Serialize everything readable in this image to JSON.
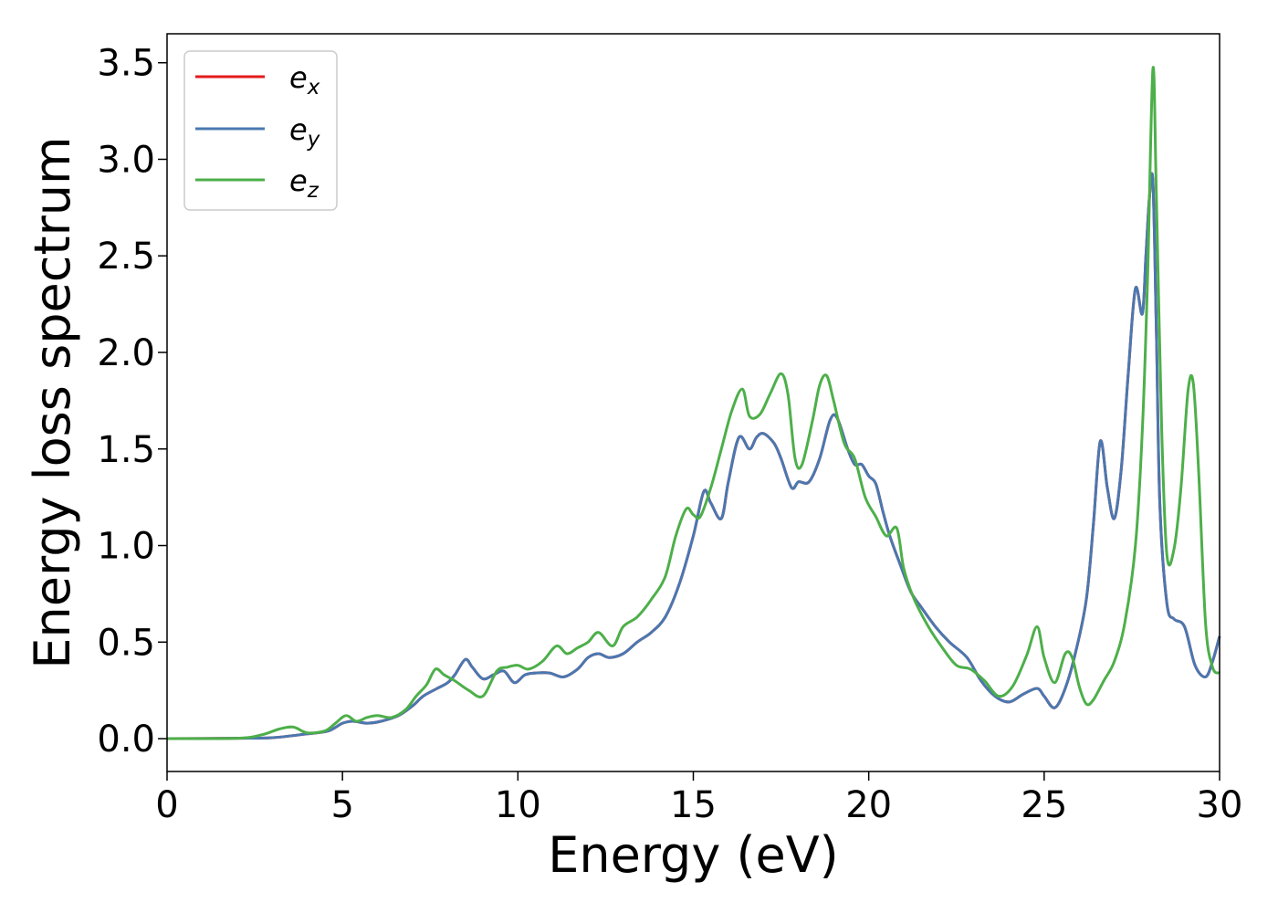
{
  "chart_data": {
    "type": "line",
    "xlabel": "Energy (eV)",
    "ylabel": "Energy loss spectrum",
    "xlim": [
      0,
      30
    ],
    "ylim": [
      -0.17,
      3.65
    ],
    "xticks": [
      0,
      5,
      10,
      15,
      20,
      25,
      30
    ],
    "yticks": [
      0.0,
      0.5,
      1.0,
      1.5,
      2.0,
      2.5,
      3.0,
      3.5
    ],
    "xtick_labels": [
      "0",
      "5",
      "10",
      "15",
      "20",
      "25",
      "30"
    ],
    "ytick_labels": [
      "0.0",
      "0.5",
      "1.0",
      "1.5",
      "2.0",
      "2.5",
      "3.0",
      "3.5"
    ],
    "grid": false,
    "legend_position": "top-left",
    "series": [
      {
        "name": "e",
        "subscript": "x",
        "color": "#e41a1c",
        "x": [
          0,
          2,
          3,
          4,
          4.6,
          5,
          5.3,
          5.7,
          6.1,
          6.6,
          7.0,
          7.3,
          7.7,
          8.0,
          8.2,
          8.5,
          8.7,
          9.0,
          9.3,
          9.6,
          9.9,
          10.2,
          10.5,
          10.9,
          11.3,
          11.7,
          12.0,
          12.3,
          12.6,
          13.0,
          13.4,
          13.8,
          14.2,
          14.6,
          15.0,
          15.3,
          15.5,
          15.8,
          16.0,
          16.3,
          16.6,
          16.8,
          17.0,
          17.3,
          17.5,
          17.8,
          18.0,
          18.3,
          18.6,
          18.9,
          19.1,
          19.4,
          19.6,
          19.8,
          20.0,
          20.2,
          20.4,
          20.6,
          20.9,
          21.2,
          21.5,
          21.9,
          22.3,
          22.8,
          23.2,
          23.6,
          24.0,
          24.4,
          24.8,
          25.0,
          25.3,
          25.6,
          25.9,
          26.2,
          26.4,
          26.6,
          26.8,
          27.0,
          27.2,
          27.4,
          27.6,
          27.8,
          27.9,
          28.0,
          28.1,
          28.2,
          28.3,
          28.5,
          28.7,
          29.0,
          29.3,
          29.6,
          29.8,
          30.0
        ],
        "values": [
          0,
          0.002,
          0.005,
          0.025,
          0.04,
          0.08,
          0.09,
          0.08,
          0.09,
          0.12,
          0.17,
          0.22,
          0.26,
          0.29,
          0.33,
          0.41,
          0.37,
          0.31,
          0.33,
          0.35,
          0.29,
          0.33,
          0.34,
          0.34,
          0.32,
          0.36,
          0.42,
          0.44,
          0.42,
          0.44,
          0.5,
          0.55,
          0.63,
          0.8,
          1.05,
          1.28,
          1.22,
          1.14,
          1.33,
          1.56,
          1.5,
          1.56,
          1.58,
          1.53,
          1.45,
          1.3,
          1.33,
          1.33,
          1.45,
          1.65,
          1.66,
          1.5,
          1.42,
          1.42,
          1.36,
          1.32,
          1.18,
          1.05,
          0.9,
          0.76,
          0.68,
          0.58,
          0.5,
          0.42,
          0.3,
          0.22,
          0.19,
          0.23,
          0.26,
          0.22,
          0.16,
          0.26,
          0.45,
          0.72,
          1.1,
          1.54,
          1.3,
          1.14,
          1.4,
          1.9,
          2.33,
          2.2,
          2.5,
          2.8,
          2.88,
          2.1,
          1.2,
          0.7,
          0.62,
          0.58,
          0.38,
          0.32,
          0.4,
          0.53
        ]
      },
      {
        "name": "e",
        "subscript": "y",
        "color": "#4a78b0",
        "x": [
          0,
          2,
          3,
          4,
          4.6,
          5,
          5.3,
          5.7,
          6.1,
          6.6,
          7.0,
          7.3,
          7.7,
          8.0,
          8.2,
          8.5,
          8.7,
          9.0,
          9.3,
          9.6,
          9.9,
          10.2,
          10.5,
          10.9,
          11.3,
          11.7,
          12.0,
          12.3,
          12.6,
          13.0,
          13.4,
          13.8,
          14.2,
          14.6,
          15.0,
          15.3,
          15.5,
          15.8,
          16.0,
          16.3,
          16.6,
          16.8,
          17.0,
          17.3,
          17.5,
          17.8,
          18.0,
          18.3,
          18.6,
          18.9,
          19.1,
          19.4,
          19.6,
          19.8,
          20.0,
          20.2,
          20.4,
          20.6,
          20.9,
          21.2,
          21.5,
          21.9,
          22.3,
          22.8,
          23.2,
          23.6,
          24.0,
          24.4,
          24.8,
          25.0,
          25.3,
          25.6,
          25.9,
          26.2,
          26.4,
          26.6,
          26.8,
          27.0,
          27.2,
          27.4,
          27.6,
          27.8,
          27.9,
          28.0,
          28.1,
          28.2,
          28.3,
          28.5,
          28.7,
          29.0,
          29.3,
          29.6,
          29.8,
          30.0
        ],
        "values": [
          0,
          0.002,
          0.005,
          0.025,
          0.04,
          0.08,
          0.09,
          0.08,
          0.09,
          0.12,
          0.17,
          0.22,
          0.26,
          0.29,
          0.33,
          0.41,
          0.37,
          0.31,
          0.33,
          0.35,
          0.29,
          0.33,
          0.34,
          0.34,
          0.32,
          0.36,
          0.42,
          0.44,
          0.42,
          0.44,
          0.5,
          0.55,
          0.63,
          0.8,
          1.05,
          1.28,
          1.22,
          1.14,
          1.33,
          1.56,
          1.5,
          1.56,
          1.58,
          1.53,
          1.45,
          1.3,
          1.33,
          1.33,
          1.45,
          1.65,
          1.66,
          1.5,
          1.42,
          1.42,
          1.36,
          1.32,
          1.18,
          1.05,
          0.9,
          0.76,
          0.68,
          0.58,
          0.5,
          0.42,
          0.3,
          0.22,
          0.19,
          0.23,
          0.26,
          0.22,
          0.16,
          0.26,
          0.45,
          0.72,
          1.1,
          1.54,
          1.3,
          1.14,
          1.4,
          1.9,
          2.33,
          2.2,
          2.5,
          2.8,
          2.88,
          2.1,
          1.2,
          0.7,
          0.62,
          0.58,
          0.38,
          0.32,
          0.4,
          0.53
        ]
      },
      {
        "name": "e",
        "subscript": "z",
        "color": "#4daf4a",
        "x": [
          0,
          2,
          2.7,
          3.2,
          3.6,
          4.0,
          4.5,
          4.8,
          5.1,
          5.4,
          5.7,
          6.0,
          6.4,
          6.8,
          7.1,
          7.4,
          7.65,
          7.9,
          8.2,
          8.6,
          9.0,
          9.4,
          9.7,
          10.0,
          10.3,
          10.7,
          11.1,
          11.4,
          11.7,
          12.0,
          12.3,
          12.7,
          13.0,
          13.4,
          13.8,
          14.2,
          14.5,
          14.8,
          15.0,
          15.2,
          15.5,
          15.8,
          16.1,
          16.4,
          16.6,
          16.9,
          17.2,
          17.5,
          17.7,
          17.9,
          18.1,
          18.4,
          18.6,
          18.8,
          19.0,
          19.3,
          19.6,
          19.9,
          20.2,
          20.5,
          20.8,
          21.0,
          21.3,
          21.7,
          22.1,
          22.5,
          22.9,
          23.3,
          23.7,
          24.1,
          24.5,
          24.8,
          25.0,
          25.3,
          25.6,
          25.8,
          26.0,
          26.2,
          26.4,
          26.7,
          27.0,
          27.3,
          27.6,
          27.8,
          27.95,
          28.1,
          28.2,
          28.35,
          28.5,
          28.7,
          28.9,
          29.1,
          29.25,
          29.4,
          29.6,
          29.8,
          30.0
        ],
        "values": [
          0,
          0.002,
          0.02,
          0.05,
          0.06,
          0.03,
          0.04,
          0.08,
          0.12,
          0.09,
          0.11,
          0.12,
          0.11,
          0.15,
          0.22,
          0.28,
          0.36,
          0.33,
          0.3,
          0.25,
          0.22,
          0.35,
          0.37,
          0.38,
          0.36,
          0.4,
          0.48,
          0.44,
          0.47,
          0.5,
          0.55,
          0.48,
          0.58,
          0.63,
          0.72,
          0.84,
          1.05,
          1.19,
          1.16,
          1.15,
          1.3,
          1.5,
          1.7,
          1.81,
          1.67,
          1.68,
          1.79,
          1.89,
          1.78,
          1.45,
          1.42,
          1.65,
          1.83,
          1.88,
          1.75,
          1.53,
          1.45,
          1.25,
          1.15,
          1.05,
          1.09,
          0.88,
          0.72,
          0.58,
          0.47,
          0.38,
          0.36,
          0.3,
          0.22,
          0.27,
          0.43,
          0.58,
          0.42,
          0.29,
          0.44,
          0.42,
          0.27,
          0.18,
          0.2,
          0.3,
          0.4,
          0.6,
          1.0,
          1.6,
          2.4,
          3.47,
          2.8,
          1.6,
          0.95,
          0.98,
          1.3,
          1.8,
          1.84,
          1.4,
          0.6,
          0.37,
          0.34
        ]
      }
    ]
  }
}
